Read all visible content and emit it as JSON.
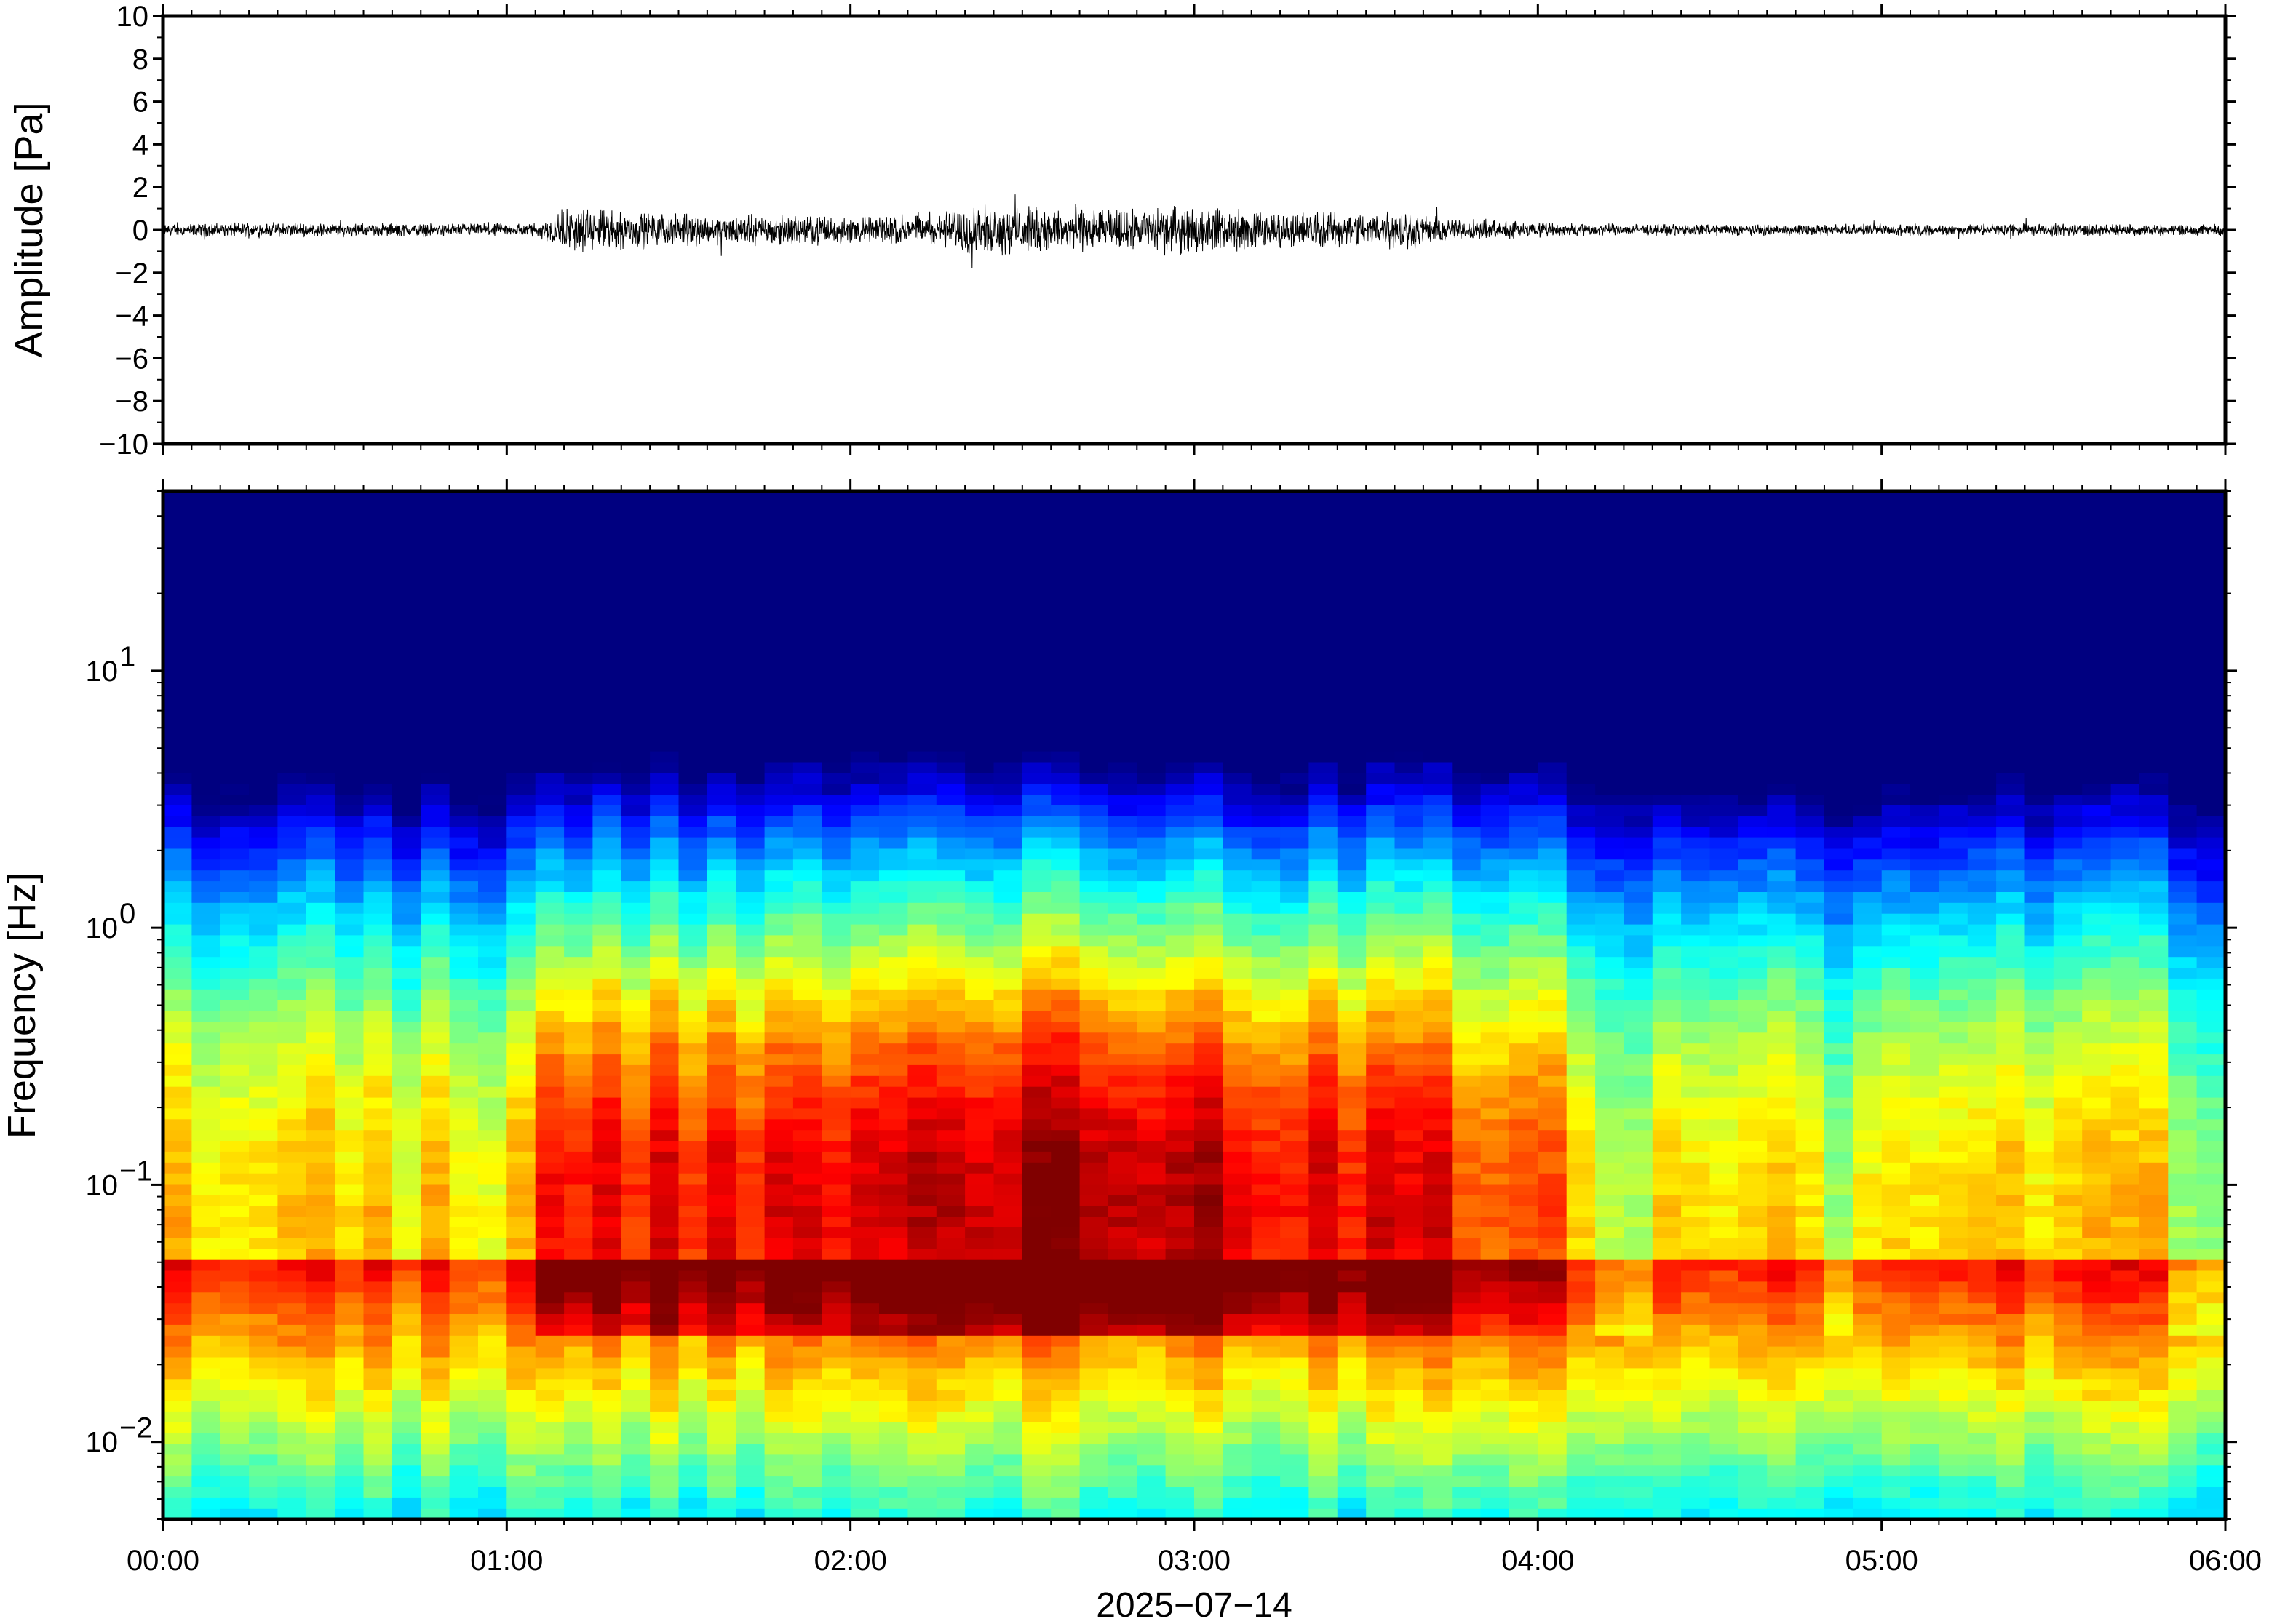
{
  "chart_data": [
    {
      "type": "line",
      "panel": "waveform",
      "ylabel": "Amplitude [Pa]",
      "xlim_hours": [
        0,
        6
      ],
      "ylim": [
        -10,
        10
      ],
      "yticks": [
        10,
        8,
        6,
        4,
        2,
        0,
        -2,
        -4,
        -6,
        -8,
        -10
      ],
      "ytick_labels": [
        "10",
        "8",
        "6",
        "4",
        "2",
        "0",
        "−2",
        "−4",
        "−6",
        "−8",
        "−10"
      ],
      "envelope": {
        "x_hours": [
          0.0,
          0.25,
          0.5,
          0.75,
          1.0,
          1.1,
          1.15,
          1.25,
          1.5,
          1.75,
          2.0,
          2.25,
          2.35,
          2.5,
          2.75,
          3.0,
          3.25,
          3.5,
          3.6,
          3.75,
          4.0,
          4.25,
          4.5,
          4.75,
          5.0,
          5.25,
          5.5,
          5.75,
          6.0
        ],
        "amp_pa": [
          0.3,
          0.4,
          0.35,
          0.35,
          0.35,
          0.4,
          1.1,
          1.2,
          0.8,
          0.8,
          0.75,
          0.85,
          1.3,
          1.2,
          1.1,
          1.2,
          1.0,
          0.9,
          1.1,
          0.6,
          0.4,
          0.3,
          0.3,
          0.3,
          0.3,
          0.3,
          0.35,
          0.3,
          0.3
        ]
      },
      "grid": false
    },
    {
      "type": "heatmap",
      "panel": "spectrogram",
      "ylabel": "Frequency [Hz]",
      "yscale": "log",
      "ylim_hz": [
        0.005,
        50
      ],
      "ytick_labels": [
        {
          "base": "10",
          "exp": "1",
          "value": 10
        },
        {
          "base": "10",
          "exp": "0",
          "value": 1
        },
        {
          "base": "10",
          "exp": "−1",
          "value": 0.1
        },
        {
          "base": "10",
          "exp": "−2",
          "value": 0.01
        }
      ],
      "colormap": "jet",
      "notes_energy": "high energy concentrated near 0.05–0.3 Hz between 01:10 and 03:45",
      "grid": false
    }
  ],
  "xaxis": {
    "tick_labels": [
      "00:00",
      "01:00",
      "02:00",
      "03:00",
      "04:00",
      "05:00",
      "06:00"
    ],
    "tick_hours": [
      0,
      1,
      2,
      3,
      4,
      5,
      6
    ],
    "date_label": "2025−07−14"
  },
  "colors": {
    "axis": "#000000",
    "trace": "#000000",
    "background": "#ffffff"
  }
}
